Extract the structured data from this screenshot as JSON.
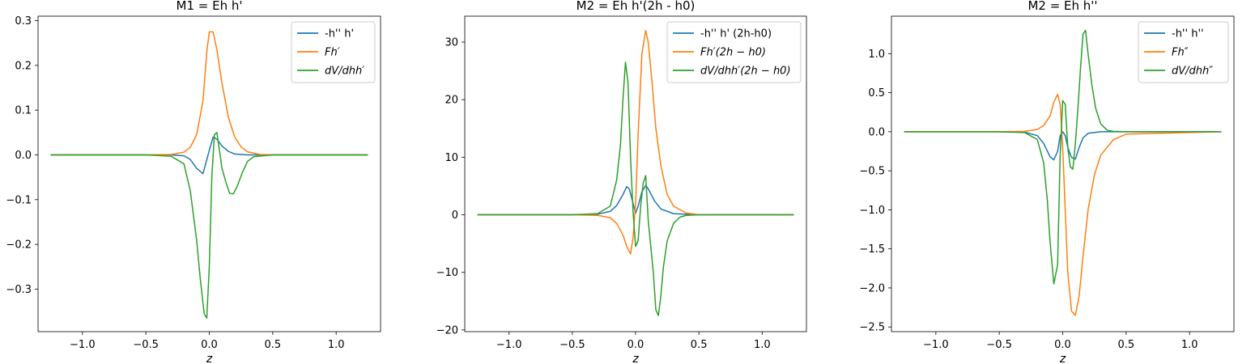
{
  "chart_data": [
    {
      "type": "line",
      "title": "M1 = Eh h'",
      "xlabel": "z",
      "ylabel": "",
      "xlim": [
        -1.35,
        1.35
      ],
      "ylim": [
        -0.395,
        0.31
      ],
      "xticks": [
        -1.0,
        -0.5,
        0.0,
        0.5,
        1.0
      ],
      "xtick_labels": [
        "−1.0",
        "−0.5",
        "0.0",
        "0.5",
        "1.0"
      ],
      "yticks": [
        0.3,
        0.2,
        0.1,
        0.0,
        -0.1,
        -0.2,
        -0.3
      ],
      "ytick_labels": [
        "0.3",
        "0.2",
        "0.1",
        "0.0",
        "−0.1",
        "−0.2",
        "−0.3"
      ],
      "legend_position": "upper right",
      "grid": false,
      "series": [
        {
          "name": "-h'' h'",
          "color": "#1f77b4",
          "x": [
            -1.25,
            -0.5,
            -0.3,
            -0.2,
            -0.15,
            -0.1,
            -0.05,
            0.0,
            0.03,
            0.06,
            0.1,
            0.15,
            0.2,
            0.3,
            0.5,
            1.25
          ],
          "y": [
            0,
            0,
            0,
            -0.002,
            -0.01,
            -0.03,
            -0.042,
            0.01,
            0.04,
            0.035,
            0.02,
            0.008,
            0.002,
            0,
            0,
            0
          ]
        },
        {
          "name": "Fh′",
          "color": "#ff7f0e",
          "x": [
            -1.25,
            -0.5,
            -0.3,
            -0.2,
            -0.15,
            -0.1,
            -0.05,
            -0.02,
            0.0,
            0.03,
            0.06,
            0.1,
            0.15,
            0.2,
            0.25,
            0.3,
            0.4,
            0.5,
            1.25
          ],
          "y": [
            0,
            0,
            0.001,
            0.006,
            0.017,
            0.045,
            0.12,
            0.23,
            0.275,
            0.275,
            0.235,
            0.16,
            0.085,
            0.04,
            0.018,
            0.007,
            0.001,
            0,
            0
          ]
        },
        {
          "name": "dV/dhh′",
          "color": "#2ca02c",
          "x": [
            -1.25,
            -0.5,
            -0.3,
            -0.2,
            -0.15,
            -0.1,
            -0.07,
            -0.04,
            -0.02,
            0.0,
            0.02,
            0.04,
            0.06,
            0.08,
            0.1,
            0.13,
            0.16,
            0.19,
            0.22,
            0.26,
            0.3,
            0.35,
            0.5,
            1.25
          ],
          "y": [
            0,
            0,
            -0.003,
            -0.02,
            -0.08,
            -0.19,
            -0.28,
            -0.355,
            -0.365,
            -0.25,
            -0.05,
            0.045,
            0.05,
            0.01,
            -0.03,
            -0.06,
            -0.086,
            -0.087,
            -0.07,
            -0.04,
            -0.015,
            -0.004,
            0,
            0
          ]
        }
      ]
    },
    {
      "type": "line",
      "title": "M2 = Eh h'(2h - h0)",
      "xlabel": "z",
      "ylabel": "",
      "xlim": [
        -1.35,
        1.35
      ],
      "ylim": [
        -20.3,
        34.5
      ],
      "xticks": [
        -1.0,
        -0.5,
        0.0,
        0.5,
        1.0
      ],
      "xtick_labels": [
        "−1.0",
        "−0.5",
        "0.0",
        "0.5",
        "1.0"
      ],
      "yticks": [
        30,
        20,
        10,
        0,
        -10,
        -20
      ],
      "ytick_labels": [
        "30",
        "20",
        "10",
        "0",
        "−10",
        "−20"
      ],
      "legend_position": "upper right",
      "grid": false,
      "series": [
        {
          "name": "-h'' h' (2h-h0)",
          "color": "#1f77b4",
          "x": [
            -1.25,
            -0.5,
            -0.3,
            -0.2,
            -0.15,
            -0.1,
            -0.07,
            -0.05,
            -0.02,
            0.0,
            0.02,
            0.05,
            0.08,
            0.1,
            0.15,
            0.2,
            0.3,
            0.5,
            1.25
          ],
          "y": [
            0,
            0,
            0.1,
            0.6,
            1.6,
            3.5,
            4.9,
            4.5,
            2.0,
            0.3,
            1.5,
            4.0,
            5.1,
            4.5,
            2.4,
            1.0,
            0.2,
            0,
            0
          ]
        },
        {
          "name": "Fh′(2h − h0)",
          "color": "#ff7f0e",
          "x": [
            -1.25,
            -0.5,
            -0.3,
            -0.2,
            -0.15,
            -0.1,
            -0.07,
            -0.04,
            -0.02,
            0.0,
            0.02,
            0.05,
            0.08,
            0.1,
            0.13,
            0.16,
            0.2,
            0.25,
            0.3,
            0.4,
            0.5,
            1.25
          ],
          "y": [
            0,
            0,
            -0.1,
            -0.5,
            -1.5,
            -3.5,
            -5.5,
            -6.8,
            -4.0,
            2.0,
            14.0,
            28.0,
            32.0,
            30.0,
            23.0,
            15.0,
            8.5,
            3.5,
            1.5,
            0.3,
            0,
            0
          ]
        },
        {
          "name": "dV/dhh′(2h − h0)",
          "color": "#2ca02c",
          "x": [
            -1.25,
            -0.5,
            -0.3,
            -0.2,
            -0.15,
            -0.12,
            -0.1,
            -0.08,
            -0.06,
            -0.04,
            -0.02,
            0.0,
            0.02,
            0.04,
            0.06,
            0.08,
            0.1,
            0.12,
            0.14,
            0.16,
            0.18,
            0.2,
            0.22,
            0.25,
            0.3,
            0.35,
            0.4,
            0.5,
            1.25
          ],
          "y": [
            0,
            0,
            0.2,
            1.5,
            6.0,
            12.0,
            20.0,
            26.5,
            23.0,
            10.0,
            0.5,
            -5.5,
            -4.5,
            1.5,
            5.5,
            6.8,
            -1.0,
            -5.5,
            -10.0,
            -16.5,
            -17.5,
            -14.0,
            -9.0,
            -4.5,
            -1.5,
            -0.4,
            -0.1,
            0,
            0
          ]
        }
      ]
    },
    {
      "type": "line",
      "title": "M2 = Eh h''",
      "xlabel": "z",
      "ylabel": "",
      "xlim": [
        -1.35,
        1.35
      ],
      "ylim": [
        -2.56,
        1.48
      ],
      "xticks": [
        -1.0,
        -0.5,
        0.0,
        0.5,
        1.0
      ],
      "xtick_labels": [
        "−1.0",
        "−0.5",
        "0.0",
        "0.5",
        "1.0"
      ],
      "yticks": [
        1.0,
        0.5,
        0.0,
        -0.5,
        -1.0,
        -1.5,
        -2.0,
        -2.5
      ],
      "ytick_labels": [
        "1.0",
        "0.5",
        "0.0",
        "−0.5",
        "−1.0",
        "−1.5",
        "−2.0",
        "−2.5"
      ],
      "legend_position": "upper right",
      "grid": false,
      "series": [
        {
          "name": "-h'' h''",
          "color": "#1f77b4",
          "x": [
            -1.25,
            -0.5,
            -0.3,
            -0.2,
            -0.15,
            -0.1,
            -0.07,
            -0.04,
            -0.02,
            0.0,
            0.02,
            0.04,
            0.07,
            0.1,
            0.13,
            0.16,
            0.2,
            0.3,
            0.5,
            1.25
          ],
          "y": [
            0,
            0,
            -0.005,
            -0.05,
            -0.15,
            -0.32,
            -0.36,
            -0.25,
            -0.05,
            0.0,
            -0.05,
            -0.2,
            -0.33,
            -0.35,
            -0.2,
            -0.08,
            -0.02,
            0,
            0,
            0
          ]
        },
        {
          "name": "Fh″",
          "color": "#ff7f0e",
          "x": [
            -1.25,
            -0.5,
            -0.3,
            -0.2,
            -0.15,
            -0.1,
            -0.07,
            -0.04,
            -0.02,
            0.0,
            0.02,
            0.04,
            0.07,
            0.1,
            0.13,
            0.16,
            0.2,
            0.25,
            0.3,
            0.4,
            0.5,
            1.25
          ],
          "y": [
            0,
            0,
            0.005,
            0.03,
            0.08,
            0.2,
            0.38,
            0.48,
            0.35,
            -0.2,
            -1.0,
            -1.8,
            -2.3,
            -2.35,
            -2.1,
            -1.6,
            -1.0,
            -0.55,
            -0.3,
            -0.1,
            -0.03,
            0
          ]
        },
        {
          "name": "dV/dhh″",
          "color": "#2ca02c",
          "x": [
            -1.25,
            -0.5,
            -0.3,
            -0.2,
            -0.15,
            -0.12,
            -0.1,
            -0.07,
            -0.04,
            -0.02,
            0.0,
            0.02,
            0.04,
            0.06,
            0.08,
            0.1,
            0.12,
            0.14,
            0.16,
            0.18,
            0.2,
            0.23,
            0.26,
            0.3,
            0.35,
            0.4,
            0.5,
            1.25
          ],
          "y": [
            0,
            0,
            -0.01,
            -0.1,
            -0.4,
            -0.9,
            -1.4,
            -1.95,
            -1.7,
            -0.3,
            0.4,
            0.35,
            -0.2,
            -0.45,
            -0.48,
            -0.15,
            0.3,
            0.8,
            1.25,
            1.3,
            1.0,
            0.6,
            0.3,
            0.1,
            0.02,
            0.005,
            0,
            0
          ]
        }
      ]
    }
  ]
}
